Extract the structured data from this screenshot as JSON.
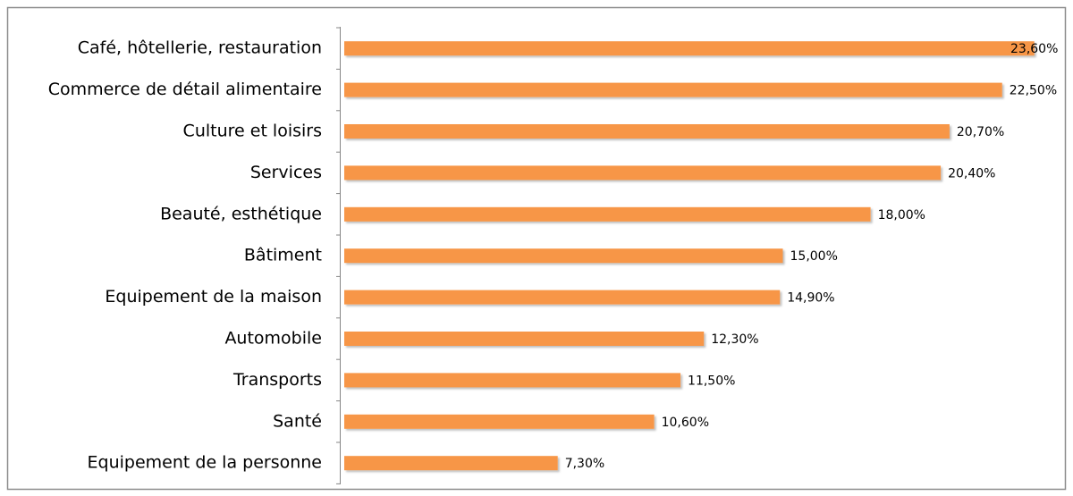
{
  "chart_data": {
    "type": "bar",
    "orientation": "horizontal",
    "color": "#f79646",
    "categories": [
      "Café, hôtellerie, restauration",
      "Commerce de détail alimentaire",
      "Culture et loisirs",
      "Services",
      "Beauté, esthétique",
      "Bâtiment",
      "Equipement de la maison",
      "Automobile",
      "Transports",
      "Santé",
      "Equipement de la personne"
    ],
    "values": [
      23.6,
      22.5,
      20.7,
      20.4,
      18.0,
      15.0,
      14.9,
      12.3,
      11.5,
      10.6,
      7.3
    ],
    "value_labels": [
      "23,60%",
      "22,50%",
      "20,70%",
      "20,40%",
      "18,00%",
      "15,00%",
      "14,90%",
      "12,30%",
      "11,50%",
      "10,60%",
      "7,30%"
    ]
  }
}
